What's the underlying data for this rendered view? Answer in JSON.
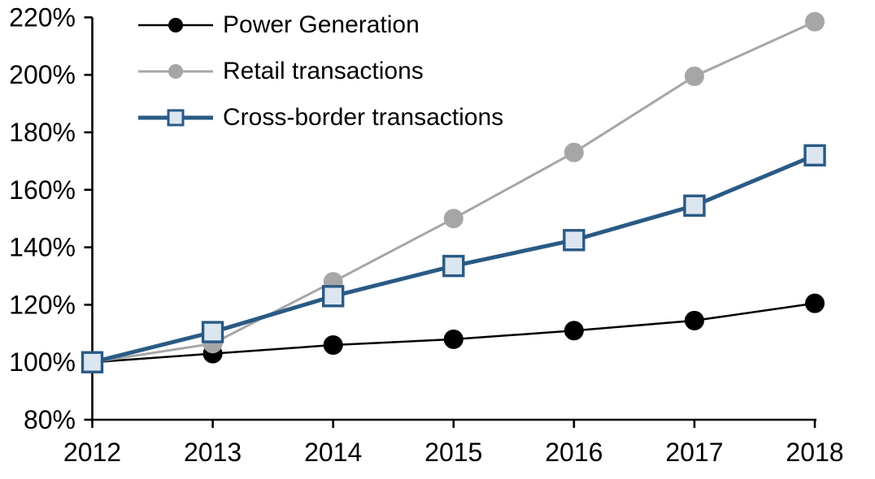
{
  "chart_data": {
    "type": "line",
    "title": "",
    "xlabel": "",
    "ylabel": "",
    "grid": false,
    "legend_position": "top-left",
    "background_color": "#ffffff",
    "axis_color": "#000000",
    "categories": [
      "2012",
      "2013",
      "2014",
      "2015",
      "2016",
      "2017",
      "2018"
    ],
    "y_axis": {
      "min": 80,
      "max": 220,
      "step": 20,
      "tick_labels": [
        "80%",
        "100%",
        "120%",
        "140%",
        "160%",
        "180%",
        "200%",
        "220%"
      ],
      "unit": "%"
    },
    "series": [
      {
        "name": "Power Generation",
        "values": [
          100,
          103,
          106,
          108,
          111,
          114.5,
          120.5
        ],
        "color": "#000000",
        "marker": "circle",
        "marker_fill": "#000000",
        "marker_stroke": "#000000",
        "line_width": 2.5
      },
      {
        "name": "Retail transactions",
        "values": [
          100,
          106.5,
          128,
          150,
          173,
          199.5,
          218.5
        ],
        "color": "#a6a6a6",
        "marker": "circle",
        "marker_fill": "#a6a6a6",
        "marker_stroke": "#a6a6a6",
        "line_width": 3
      },
      {
        "name": "Cross-border transactions",
        "values": [
          100,
          110.5,
          123,
          133.5,
          142.5,
          154.5,
          172
        ],
        "color": "#2a5a85",
        "marker": "square",
        "marker_fill": "#dce6f1",
        "marker_stroke": "#2a5a85",
        "line_width": 5
      }
    ]
  }
}
